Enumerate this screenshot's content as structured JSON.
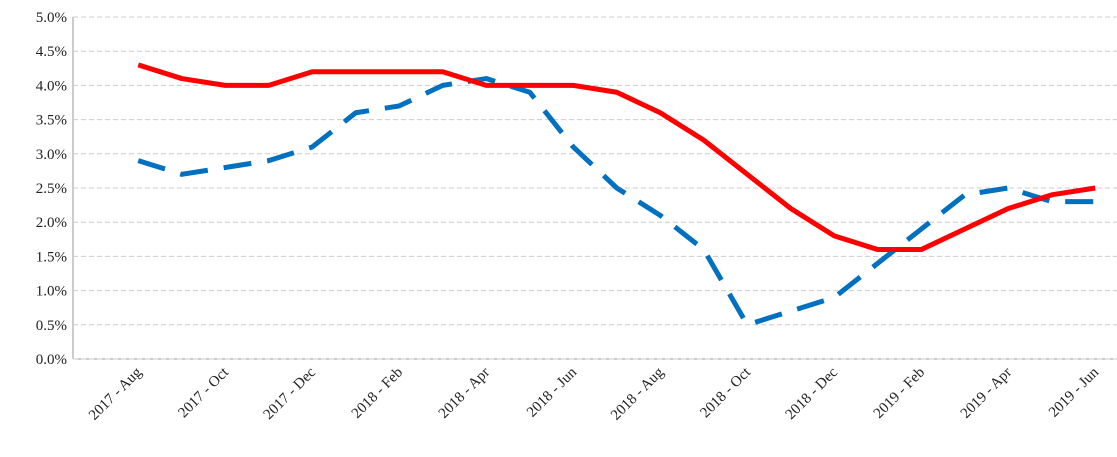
{
  "chart_data": {
    "type": "line",
    "categories": [
      null,
      "2017 - Aug",
      null,
      "2017 - Oct",
      null,
      "2017 - Dec",
      null,
      "2018 - Feb",
      null,
      "2018 - Apr",
      null,
      "2018 - Jun",
      null,
      "2018 - Aug",
      null,
      "2018 - Oct",
      null,
      "2018 - Dec",
      null,
      "2019 - Feb",
      null,
      "2019 - Apr",
      null,
      "2019 - Jun"
    ],
    "series": [
      {
        "color": "#0070c0",
        "dashed": true,
        "values": [
          null,
          2.9,
          2.7,
          2.8,
          2.9,
          3.1,
          3.6,
          3.7,
          4.0,
          4.1,
          3.9,
          3.1,
          2.5,
          2.1,
          1.6,
          0.5,
          0.7,
          0.9,
          1.4,
          1.9,
          2.4,
          2.5,
          2.3,
          2.3
        ]
      },
      {
        "color": "#ff0000",
        "dashed": false,
        "values": [
          null,
          4.3,
          4.1,
          4.0,
          4.0,
          4.2,
          4.2,
          4.2,
          4.2,
          4.0,
          4.0,
          4.0,
          3.9,
          3.6,
          3.2,
          2.7,
          2.2,
          1.8,
          1.6,
          1.6,
          1.9,
          2.2,
          2.4,
          2.5
        ]
      }
    ],
    "ylim": [
      0,
      5
    ],
    "yticks": [
      {
        "value": 0,
        "label": "0.0%"
      },
      {
        "value": 0.5,
        "label": "0.5%"
      },
      {
        "value": 1,
        "label": "1.0%"
      },
      {
        "value": 1.5,
        "label": "1.5%"
      },
      {
        "value": 2,
        "label": "2.0%"
      },
      {
        "value": 2.5,
        "label": "2.5%"
      },
      {
        "value": 3,
        "label": "3.0%"
      },
      {
        "value": 3.5,
        "label": "3.5%"
      },
      {
        "value": 4,
        "label": "4.0%"
      },
      {
        "value": 4.5,
        "label": "4.5%"
      },
      {
        "value": 5,
        "label": "5.0%"
      }
    ],
    "grid": true
  }
}
